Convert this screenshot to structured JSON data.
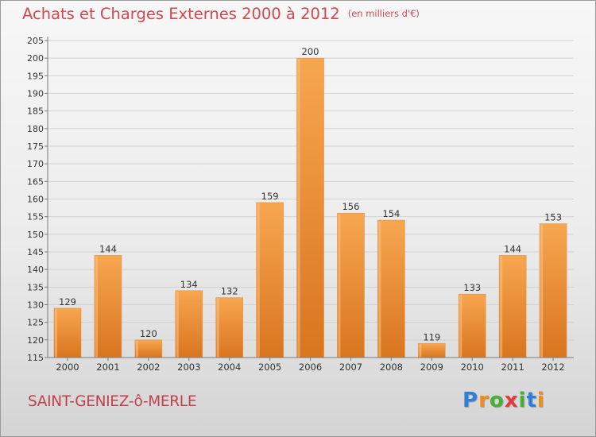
{
  "header": {
    "title": "Achats et Charges Externes 2000 à 2012",
    "unit": "(en milliers d'€)"
  },
  "footer": {
    "city": "SAINT-GENIEZ-ô-MERLE",
    "logo": {
      "text": "Proxiti",
      "letters": [
        {
          "ch": "P",
          "color": "#2f7fd8"
        },
        {
          "ch": "r",
          "color": "#ef8c1a"
        },
        {
          "ch": "o",
          "color": "#45b035"
        },
        {
          "ch": "x",
          "color": "#e23b3b"
        },
        {
          "ch": "i",
          "color": "#45b035"
        },
        {
          "ch": "t",
          "color": "#2f7fd8"
        },
        {
          "ch": "i",
          "color": "#ef8c1a"
        }
      ]
    }
  },
  "colors": {
    "bar_light": "#f7a650",
    "bar_dark": "#d9751f",
    "grid": "#d2d2d2",
    "axis": "#7a7a7a",
    "text": "#333333",
    "title": "#d0494f"
  },
  "chart_data": {
    "type": "bar",
    "title": "Achats et Charges Externes 2000 à 2012",
    "subtitle": "(en milliers d'€)",
    "categories": [
      "2000",
      "2001",
      "2002",
      "2003",
      "2004",
      "2005",
      "2006",
      "2007",
      "2008",
      "2009",
      "2010",
      "2011",
      "2012"
    ],
    "values": [
      129,
      144,
      120,
      134,
      132,
      159,
      200,
      156,
      154,
      119,
      133,
      144,
      153
    ],
    "ylim": [
      115,
      205
    ],
    "yticks": [
      115,
      120,
      125,
      130,
      135,
      140,
      145,
      150,
      155,
      160,
      165,
      170,
      175,
      180,
      185,
      190,
      195,
      200,
      205
    ],
    "grid": true,
    "data_labels": true
  }
}
